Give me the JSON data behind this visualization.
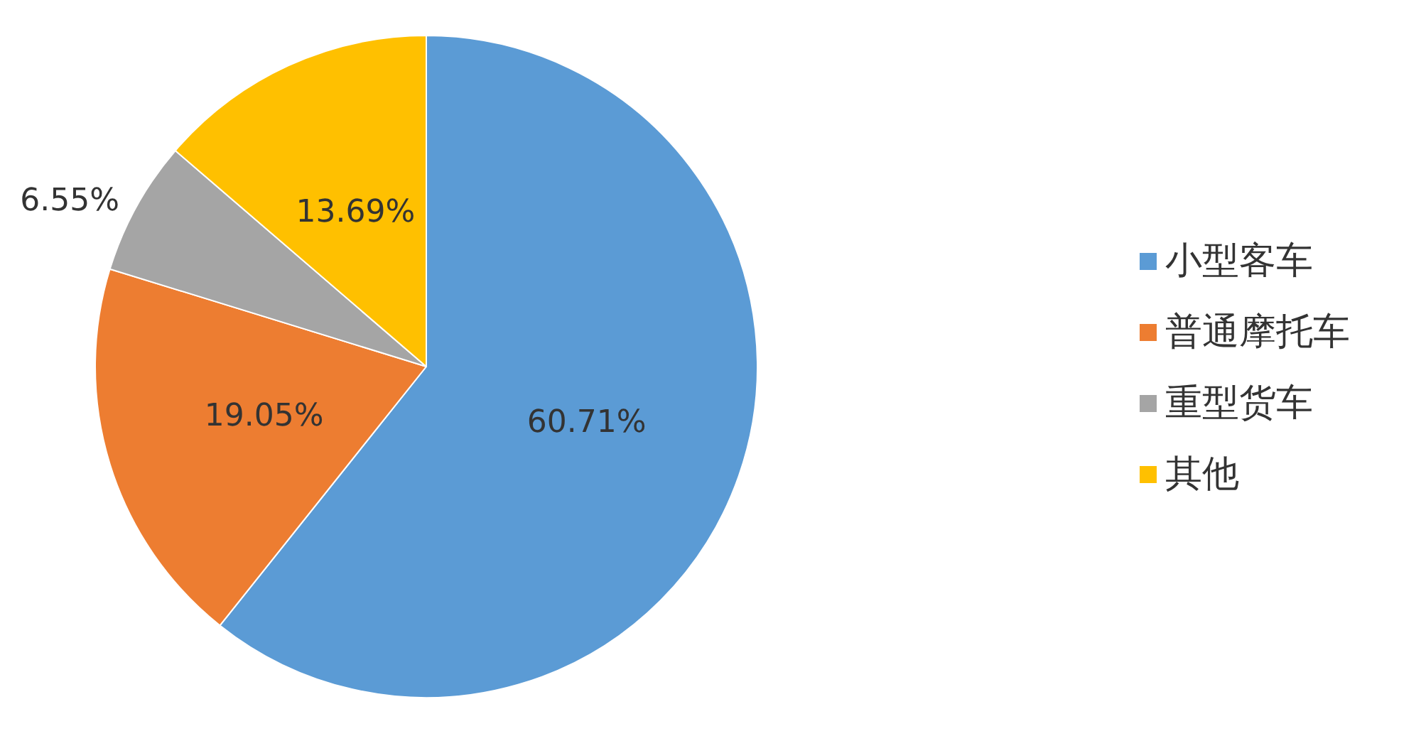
{
  "chart_data": {
    "type": "pie",
    "categories": [
      "小型客车",
      "普通摩托车",
      "重型货车",
      "其他"
    ],
    "values": [
      60.71,
      19.05,
      6.55,
      13.69
    ],
    "colors": [
      "#5b9bd5",
      "#ed7d31",
      "#a5a5a5",
      "#ffc000"
    ],
    "value_labels": [
      "60.71%",
      "19.05%",
      "6.55%",
      "13.69%"
    ],
    "legend": "right"
  }
}
